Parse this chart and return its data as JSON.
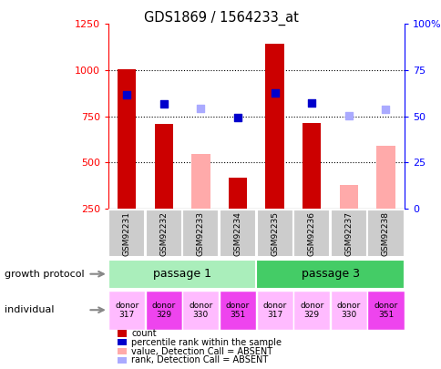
{
  "title": "GDS1869 / 1564233_at",
  "samples": [
    "GSM92231",
    "GSM92232",
    "GSM92233",
    "GSM92234",
    "GSM92235",
    "GSM92236",
    "GSM92237",
    "GSM92238"
  ],
  "count_values": [
    1005,
    710,
    null,
    415,
    1145,
    715,
    null,
    null
  ],
  "absent_value_values": [
    null,
    null,
    545,
    null,
    null,
    null,
    380,
    590
  ],
  "percentile_rank": [
    865,
    815,
    null,
    745,
    875,
    820,
    null,
    null
  ],
  "absent_rank_values": [
    null,
    null,
    790,
    null,
    null,
    null,
    755,
    785
  ],
  "left_ylim": [
    250,
    1250
  ],
  "left_yticks": [
    250,
    500,
    750,
    1000,
    1250
  ],
  "right_ylim": [
    0,
    100
  ],
  "right_yticks": [
    0,
    25,
    50,
    75,
    100
  ],
  "right_yticklabels": [
    "0",
    "25",
    "50",
    "75",
    "100%"
  ],
  "passage_1": {
    "label": "passage 1",
    "start": 0,
    "end": 4
  },
  "passage_3": {
    "label": "passage 3",
    "start": 4,
    "end": 8
  },
  "individuals": [
    "donor\n317",
    "donor\n329",
    "donor\n330",
    "donor\n351",
    "donor\n317",
    "donor\n329",
    "donor\n330",
    "donor\n351"
  ],
  "individual_colors": [
    "#ffbbff",
    "#ee44ee",
    "#ffbbff",
    "#ee44ee",
    "#ffbbff",
    "#ffbbff",
    "#ffbbff",
    "#ee44ee"
  ],
  "growth_protocol_label": "growth protocol",
  "individual_label": "individual",
  "legend_items": [
    {
      "color": "#cc0000",
      "label": "count"
    },
    {
      "color": "#0000cc",
      "label": "percentile rank within the sample"
    },
    {
      "color": "#ffaaaa",
      "label": "value, Detection Call = ABSENT"
    },
    {
      "color": "#aaaaff",
      "label": "rank, Detection Call = ABSENT"
    }
  ],
  "bar_color_present": "#cc0000",
  "bar_color_absent": "#ffaaaa",
  "dot_color_present": "#0000cc",
  "dot_color_absent": "#aaaaff",
  "passage1_color": "#aaeebb",
  "passage3_color": "#44cc66",
  "sample_box_color": "#cccccc"
}
